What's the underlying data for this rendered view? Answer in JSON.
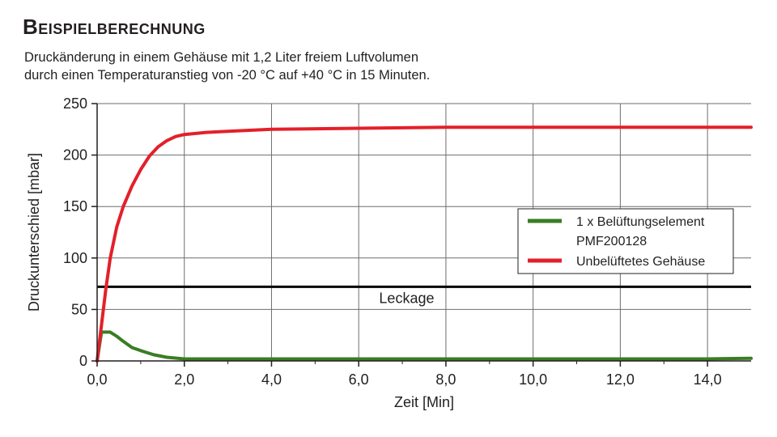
{
  "heading": {
    "title": "Beispielberechnung",
    "subtitle_line1": "Druckänderung in einem Gehäuse mit 1,2 Liter freiem Luftvolumen",
    "subtitle_line2": "durch einen Temperaturanstieg von -20 °C  auf +40 °C  in 15 Minuten."
  },
  "chart_data": {
    "type": "line",
    "xlabel": "Zeit [Min]",
    "ylabel": "Druckunterschied [mbar]",
    "xlim": [
      0,
      15
    ],
    "ylim": [
      0,
      250
    ],
    "x_ticks": [
      0,
      2,
      4,
      6,
      8,
      10,
      12,
      14
    ],
    "x_tick_labels": [
      "0,0",
      "2,0",
      "4,0",
      "6,0",
      "8,0",
      "10,0",
      "12,0",
      "14,0"
    ],
    "y_ticks": [
      0,
      50,
      100,
      150,
      200,
      250
    ],
    "y_tick_labels": [
      "0",
      "50",
      "100",
      "150",
      "200",
      "250"
    ],
    "grid": true,
    "legend_position": "right",
    "series": [
      {
        "name_line1": "1 x Belüftungselement",
        "name_line2": "PMF200128",
        "color": "#3a7d24",
        "x": [
          0,
          0.1,
          0.2,
          0.3,
          0.45,
          0.6,
          0.8,
          1.0,
          1.3,
          1.6,
          2.0,
          3.0,
          5.0,
          8.0,
          11.0,
          14.0,
          15.0
        ],
        "y": [
          0,
          28,
          28,
          28,
          24,
          19,
          13,
          10,
          6,
          3.5,
          2,
          2,
          2,
          2,
          2,
          2,
          2.5
        ]
      },
      {
        "name_line1": "Unbelüftetes Gehäuse",
        "color": "#e3202a",
        "x": [
          0,
          0.1,
          0.2,
          0.3,
          0.45,
          0.6,
          0.8,
          1.0,
          1.2,
          1.4,
          1.6,
          1.8,
          2.0,
          2.5,
          3.0,
          4.0,
          6.0,
          8.0,
          10.0,
          12.0,
          14.0,
          15.0
        ],
        "y": [
          0,
          35,
          70,
          100,
          130,
          150,
          170,
          186,
          199,
          208,
          214,
          218,
          220,
          222,
          223,
          225,
          226,
          227,
          227,
          227,
          227,
          227
        ]
      }
    ],
    "reference_line": {
      "label": "Leckage",
      "y": 72,
      "color": "#000000"
    }
  }
}
